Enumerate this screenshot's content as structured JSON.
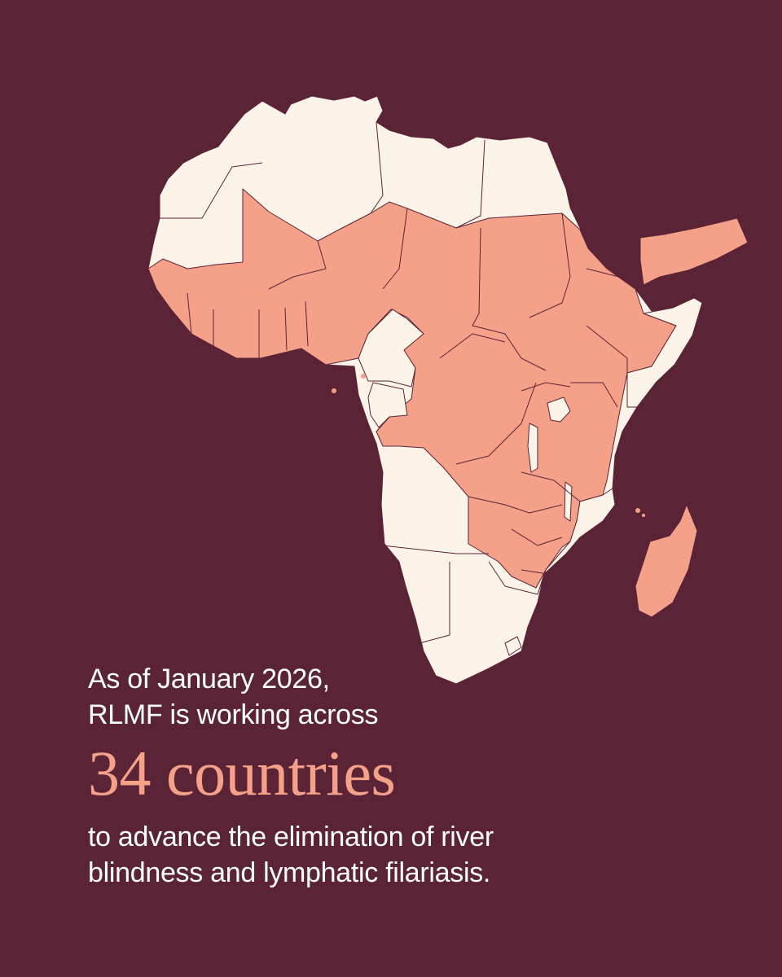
{
  "colors": {
    "background": "#5a2436",
    "highlight": "#f5a088",
    "land": "#fbf3e8",
    "text": "#ffffff"
  },
  "map": {
    "region": "Africa and Arabian Peninsula",
    "highlighted_countries_count": 34
  },
  "caption": {
    "line1": "As of January 2026,",
    "line2": "RLMF is working across",
    "headline": "34 countries",
    "line3": "to advance the elimination of river",
    "line4": "blindness and lymphatic filariasis."
  }
}
